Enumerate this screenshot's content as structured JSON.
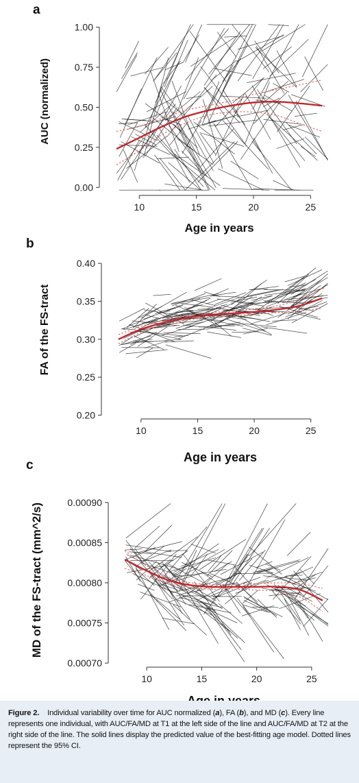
{
  "chart_data": [
    {
      "panel": "a",
      "type": "line",
      "ylabel": "AUC (normalized)",
      "xlabel": "Age in years",
      "xticks": [
        10,
        15,
        20,
        25
      ],
      "yticks": [
        "0.00",
        "0.25",
        "0.50",
        "0.75",
        "1.00"
      ],
      "xlim": [
        6.5,
        27.5
      ],
      "ylim": [
        -0.05,
        1.05
      ],
      "grid": false,
      "fit": {
        "x": [
          8,
          10,
          12,
          14,
          16,
          18,
          20,
          22,
          24,
          26
        ],
        "y": [
          0.24,
          0.31,
          0.38,
          0.44,
          0.48,
          0.51,
          0.53,
          0.535,
          0.525,
          0.51
        ]
      },
      "ci_upper": {
        "x": [
          8,
          10,
          12,
          14,
          16,
          18,
          20,
          22,
          24,
          26
        ],
        "y": [
          0.35,
          0.38,
          0.43,
          0.48,
          0.51,
          0.54,
          0.58,
          0.61,
          0.64,
          0.67
        ]
      },
      "ci_lower": {
        "x": [
          8,
          10,
          12,
          14,
          16,
          18,
          20,
          22,
          24,
          26
        ],
        "y": [
          0.14,
          0.23,
          0.33,
          0.4,
          0.45,
          0.47,
          0.47,
          0.45,
          0.4,
          0.35
        ]
      }
    },
    {
      "panel": "b",
      "type": "line",
      "ylabel": "FA of the FS-tract",
      "xlabel": "Age in years",
      "xticks": [
        10,
        15,
        20,
        25
      ],
      "yticks": [
        "0.20",
        "0.25",
        "0.30",
        "0.35",
        "0.40"
      ],
      "xlim": [
        6.5,
        27.5
      ],
      "ylim": [
        0.195,
        0.41
      ],
      "grid": false,
      "fit": {
        "x": [
          8,
          10,
          12,
          14,
          16,
          18,
          20,
          22,
          24,
          26
        ],
        "y": [
          0.3,
          0.313,
          0.322,
          0.328,
          0.332,
          0.334,
          0.336,
          0.339,
          0.344,
          0.354
        ]
      },
      "ci_upper": {
        "x": [
          8,
          10,
          12,
          14,
          16,
          18,
          20,
          22,
          24,
          26
        ],
        "y": [
          0.306,
          0.317,
          0.325,
          0.331,
          0.335,
          0.337,
          0.34,
          0.344,
          0.352,
          0.367
        ]
      },
      "ci_lower": {
        "x": [
          8,
          10,
          12,
          14,
          16,
          18,
          20,
          22,
          24,
          26
        ],
        "y": [
          0.294,
          0.309,
          0.319,
          0.325,
          0.329,
          0.331,
          0.333,
          0.335,
          0.337,
          0.341
        ]
      }
    },
    {
      "panel": "c",
      "type": "line",
      "ylabel": "MD of the FS-tract (mm^2/s)",
      "xlabel": "Age in years",
      "xticks": [
        10,
        15,
        20,
        25
      ],
      "yticks": [
        "0.00070",
        "0.00075",
        "0.00080",
        "0.00085",
        "0.00090"
      ],
      "xlim": [
        6.5,
        27.5
      ],
      "ylim": [
        0.000695,
        0.000905
      ],
      "grid": false,
      "fit": {
        "x": [
          8,
          10,
          12,
          14,
          16,
          18,
          20,
          22,
          24,
          26
        ],
        "y": [
          0.000829,
          0.000815,
          0.000803,
          0.000797,
          0.000795,
          0.000795,
          0.000795,
          0.000795,
          0.000791,
          0.000778
        ]
      },
      "ci_upper": {
        "x": [
          8,
          10,
          12,
          14,
          16,
          18,
          20,
          22,
          24,
          26
        ],
        "y": [
          0.00084,
          0.000821,
          0.000807,
          0.0008,
          0.000798,
          0.000798,
          0.000799,
          0.0008,
          0.000799,
          0.000793
        ]
      },
      "ci_lower": {
        "x": [
          8,
          10,
          12,
          14,
          16,
          18,
          20,
          22,
          24,
          26
        ],
        "y": [
          0.000818,
          0.000809,
          0.000799,
          0.000794,
          0.000792,
          0.000792,
          0.000791,
          0.000789,
          0.000782,
          0.000764
        ]
      }
    }
  ],
  "caption": {
    "label": "Figure 2.",
    "intro": "Individual variability over time for AUC normalized (",
    "a": "a",
    "sep1": "), FA (",
    "b": "b",
    "sep2": "), and MD (",
    "c": "c",
    "rest": "). Every line represents one individual, with AUC/FA/MD at T1 at the left side of the line and AUC/FA/MD at T2 at the right side of the line. The solid lines display the predicted value of the best-fitting age model. Dotted lines represent the 95% CI."
  },
  "colors": {
    "fit": "#c0282d",
    "ci": "#e06a6a",
    "individuals": "#1a1a1a",
    "caption_bg": "#e8eef6"
  }
}
